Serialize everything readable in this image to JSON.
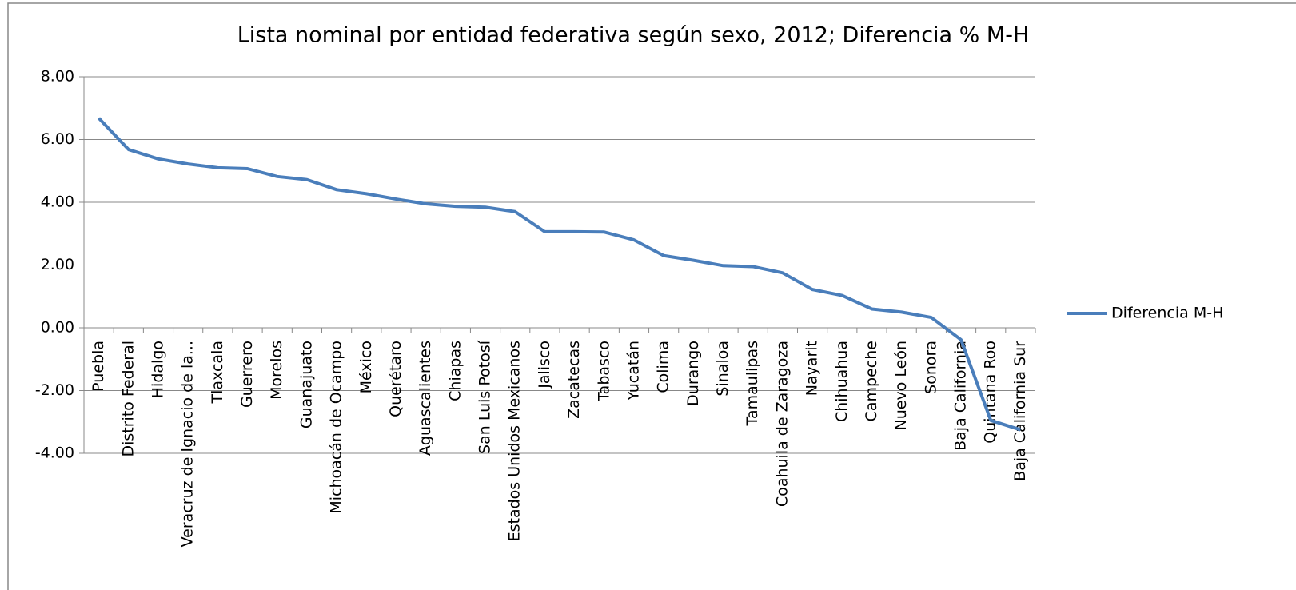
{
  "chart_data": {
    "type": "line",
    "title": "Lista nominal por entidad federativa según sexo, 2012; Diferencia % M-H",
    "categories": [
      "Puebla",
      "Distrito Federal",
      "Hidalgo",
      "Veracruz de Ignacio de la...",
      "Tlaxcala",
      "Guerrero",
      "Morelos",
      "Guanajuato",
      "Michoacán de Ocampo",
      "México",
      "Querétaro",
      "Aguascalientes",
      "Chiapas",
      "San Luis Potosí",
      "Estados Unidos Mexicanos",
      "Jalisco",
      "Zacatecas",
      "Tabasco",
      "Yucatán",
      "Colima",
      "Durango",
      "Sinaloa",
      "Tamaulipas",
      "Coahuila de Zaragoza",
      "Nayarit",
      "Chihuahua",
      "Campeche",
      "Nuevo León",
      "Sonora",
      "Baja California",
      "Quintana Roo",
      "Baja California Sur"
    ],
    "series": [
      {
        "name": "Diferencia M-H",
        "color": "#4a7ebb",
        "values": [
          6.68,
          5.68,
          5.38,
          5.22,
          5.1,
          5.07,
          4.82,
          4.72,
          4.4,
          4.27,
          4.1,
          3.95,
          3.87,
          3.84,
          3.7,
          3.06,
          3.06,
          3.05,
          2.8,
          2.3,
          2.15,
          1.98,
          1.95,
          1.75,
          1.22,
          1.03,
          0.6,
          0.5,
          0.33,
          -0.38,
          -2.95,
          -3.25
        ]
      }
    ],
    "ylim": [
      -4,
      8
    ],
    "yticks": [
      {
        "value": -4,
        "label": "-4.00"
      },
      {
        "value": -2,
        "label": "-2.00"
      },
      {
        "value": 0,
        "label": "0.00"
      },
      {
        "value": 2,
        "label": "2.00"
      },
      {
        "value": 4,
        "label": "4.00"
      },
      {
        "value": 6,
        "label": "6.00"
      },
      {
        "value": 8,
        "label": "8.00"
      }
    ],
    "grid": true,
    "legend": "right"
  }
}
